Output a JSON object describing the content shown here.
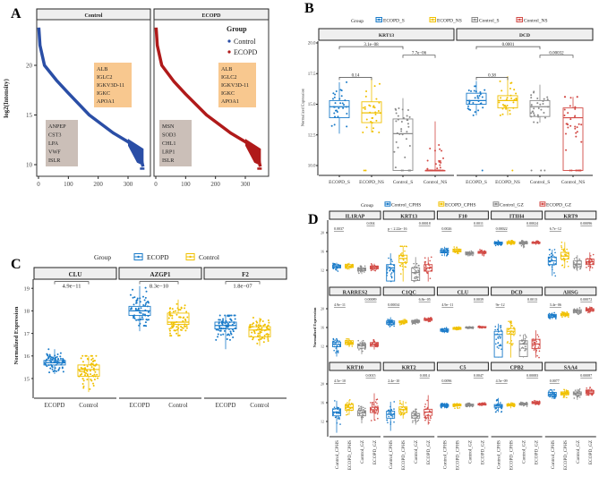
{
  "colors": {
    "a_control": "#2a4ea6",
    "a_ecopd": "#b01a1a",
    "blue": "#1a7bc9",
    "yellow": "#f0c000",
    "grey": "#8a8a8a",
    "red": "#d24a45",
    "label_orange": "#f8c88f",
    "label_grey": "#cbbfb8"
  },
  "chart_data": [
    {
      "panel": "A",
      "type": "scatter",
      "ylabel": "log2(Intensity)",
      "yticks": [
        10,
        15,
        20
      ],
      "xticks": [
        0,
        100,
        200,
        300
      ],
      "legend": {
        "title": "Group",
        "entries": [
          "Control",
          "ECOPD"
        ],
        "placement": "top-right"
      },
      "facets": [
        {
          "title": "Control",
          "series": "Control",
          "curve": [
            [
              1,
              23.8
            ],
            [
              5,
              22
            ],
            [
              20,
              20
            ],
            [
              60,
              18.5
            ],
            [
              100,
              17.2
            ],
            [
              170,
              15
            ],
            [
              250,
              13.2
            ],
            [
              300,
              12.3
            ],
            [
              330,
              11.5
            ],
            [
              345,
              10.5
            ],
            [
              350,
              9.8
            ]
          ],
          "high_genes": [
            "ALB",
            "IGLC2",
            "IGKV3D-11",
            "IGKC",
            "APOA1"
          ],
          "low_genes": [
            "ANPEP",
            "CST3",
            "LPA",
            "VWF",
            "ISLR"
          ]
        },
        {
          "title": "ECOPD",
          "series": "ECOPD",
          "curve": [
            [
              1,
              23.8
            ],
            [
              5,
              22
            ],
            [
              20,
              20
            ],
            [
              60,
              18.4
            ],
            [
              100,
              17.1
            ],
            [
              170,
              15
            ],
            [
              250,
              13.2
            ],
            [
              300,
              12.3
            ],
            [
              330,
              11.5
            ],
            [
              345,
              10.5
            ],
            [
              350,
              9.8
            ]
          ],
          "high_genes": [
            "ALB",
            "IGLC2",
            "IGKV3D-11",
            "IGKC",
            "APOA1"
          ],
          "low_genes": [
            "MSN",
            "SOD3",
            "CHL1",
            "LRP1",
            "ISLR"
          ]
        }
      ]
    },
    {
      "panel": "B",
      "type": "box",
      "ylabel": "Normalized Expression",
      "yticks": [
        "10.0",
        "12.5",
        "15.0",
        "17.5",
        "20.0"
      ],
      "legend": {
        "title": "Group",
        "entries": [
          "ECOPD_S",
          "ECOPD_NS",
          "Control_S",
          "Control_NS"
        ],
        "placement": "top"
      },
      "categories": [
        "ECOPD_S",
        "ECOPD_NS",
        "Control_S",
        "Control_NS"
      ],
      "facets": [
        {
          "title": "KRT13",
          "boxes": [
            [
              12.6,
              13.9,
              14.8,
              15.3,
              16.8
            ],
            [
              12.7,
              13.5,
              14.3,
              15.2,
              17.1
            ],
            [
              9.6,
              9.6,
              12.6,
              13.8,
              15.5
            ],
            [
              9.6,
              9.6,
              9.6,
              9.6,
              13.6
            ]
          ],
          "floor": [
            0,
            2,
            5,
            14
          ],
          "pvalues": [
            {
              "pair": [
                1,
                3
              ],
              "p": "3.1e−08",
              "y": 19.7
            },
            {
              "pair": [
                3,
                4
              ],
              "p": "7.7e−06",
              "y": 19.0
            },
            {
              "pair": [
                1,
                2
              ],
              "p": "0.14",
              "y": 17.2
            }
          ]
        },
        {
          "title": "DCD",
          "boxes": [
            [
              14.1,
              15.0,
              15.3,
              15.9,
              16.9
            ],
            [
              14.1,
              14.7,
              15.3,
              15.7,
              17.3
            ],
            [
              13.5,
              14.0,
              14.8,
              15.3,
              16.6
            ],
            [
              9.6,
              9.6,
              13.9,
              14.7,
              15.6
            ]
          ],
          "floor": [
            1,
            1,
            3,
            8
          ],
          "pvalues": [
            {
              "pair": [
                1,
                3
              ],
              "p": "0.0001",
              "y": 19.7
            },
            {
              "pair": [
                3,
                4
              ],
              "p": "0.00032",
              "y": 19.0
            },
            {
              "pair": [
                1,
                2
              ],
              "p": "0.38",
              "y": 17.2
            }
          ]
        }
      ]
    },
    {
      "panel": "C",
      "type": "box",
      "ylabel": "Normalized Expression",
      "yticks": [
        15,
        16,
        17,
        18,
        19
      ],
      "legend": {
        "title": "Group",
        "entries": [
          "ECOPD",
          "Control"
        ],
        "placement": "top"
      },
      "categories": [
        "ECOPD",
        "Control"
      ],
      "facets": [
        {
          "title": "CLU",
          "boxes": [
            [
              15.2,
              15.6,
              15.7,
              15.8,
              16.3
            ],
            [
              14.4,
              15.1,
              15.4,
              15.6,
              16.0
            ]
          ],
          "p": "4.9e−11"
        },
        {
          "title": "AZGP1",
          "boxes": [
            [
              17.1,
              17.8,
              18.0,
              18.2,
              19.1
            ],
            [
              16.9,
              17.4,
              17.5,
              17.9,
              18.5
            ]
          ],
          "p": "8.3e−10"
        },
        {
          "title": "F2",
          "boxes": [
            [
              16.3,
              17.2,
              17.35,
              17.5,
              17.8
            ],
            [
              16.45,
              16.85,
              17.15,
              17.3,
              17.7
            ]
          ],
          "p": "1.8e−07"
        }
      ]
    },
    {
      "panel": "D",
      "type": "box",
      "ylabel": "Normalized Expression",
      "yticks": [
        12,
        16,
        20
      ],
      "legend": {
        "title": "Group",
        "entries": [
          "Control_CPHS",
          "ECOPD_CPHS",
          "Control_GZ",
          "ECOPD_GZ"
        ],
        "placement": "top"
      },
      "categories": [
        "Control_CPHS",
        "ECOPD_CPHS",
        "Control_GZ",
        "ECOPD_GZ"
      ],
      "facets": [
        {
          "title": "IL1RAP",
          "p": [
            "0.0037",
            "0.004"
          ],
          "boxes": [
            [
              11.8,
              12.5,
              12.8,
              13.1,
              13.6
            ],
            [
              12.1,
              12.6,
              12.9,
              13.2,
              13.6
            ],
            [
              11.2,
              11.9,
              12.2,
              12.5,
              12.9
            ],
            [
              11.8,
              12.3,
              12.6,
              12.9,
              13.4
            ]
          ]
        },
        {
          "title": "KRT13",
          "p": [
            "p < 2.22e−16",
            "0.00018"
          ],
          "boxes": [
            [
              9.6,
              9.7,
              12.5,
              13.2,
              15.6
            ],
            [
              9.6,
              13.6,
              14.5,
              15.2,
              17.1
            ],
            [
              9.6,
              9.8,
              11.5,
              12.5,
              14.8
            ],
            [
              9.6,
              11.8,
              12.5,
              13.2,
              14.8
            ]
          ]
        },
        {
          "title": "F10",
          "p": [
            "0.0026",
            "0.0011"
          ],
          "boxes": [
            [
              15.0,
              15.7,
              16.0,
              16.3,
              17.0
            ],
            [
              15.4,
              15.9,
              16.2,
              16.5,
              17.0
            ],
            [
              15.0,
              15.4,
              15.6,
              15.8,
              16.1
            ],
            [
              15.1,
              15.6,
              15.8,
              16.0,
              16.4
            ]
          ]
        },
        {
          "title": "ITIH4",
          "p": [
            "0.00022",
            "0.00024"
          ],
          "boxes": [
            [
              17.2,
              17.6,
              17.8,
              18.0,
              18.4
            ],
            [
              17.3,
              17.7,
              17.9,
              18.1,
              18.4
            ],
            [
              16.7,
              17.6,
              17.8,
              18.0,
              18.3
            ],
            [
              17.4,
              17.7,
              17.9,
              18.0,
              18.2
            ]
          ]
        },
        {
          "title": "KRT9",
          "p": [
            "6.7e−12",
            "0.00096"
          ],
          "boxes": [
            [
              10.8,
              13.2,
              14.0,
              14.8,
              16.4
            ],
            [
              12.6,
              14.4,
              15.0,
              15.8,
              18.0
            ],
            [
              11.8,
              12.7,
              13.3,
              14.0,
              15.2
            ],
            [
              11.8,
              13.2,
              13.8,
              14.4,
              15.8
            ]
          ]
        },
        {
          "title": "RARRES2",
          "p": [
            "4.9e−11",
            "0.00089"
          ],
          "boxes": [
            [
              9.8,
              11.9,
              12.4,
              12.9,
              13.6
            ],
            [
              11.8,
              12.4,
              12.8,
              13.2,
              13.7
            ],
            [
              10.3,
              11.6,
              12.1,
              12.5,
              13.2
            ],
            [
              11.3,
              12.0,
              12.4,
              12.8,
              13.4
            ]
          ]
        },
        {
          "title": "C1QC",
          "p": [
            "0.00034",
            "6.8e−05"
          ],
          "boxes": [
            [
              16.2,
              16.7,
              17.0,
              17.4,
              18.2
            ],
            [
              16.6,
              17.0,
              17.2,
              17.4,
              17.8
            ],
            [
              16.6,
              17.1,
              17.3,
              17.5,
              17.8
            ],
            [
              17.1,
              17.5,
              17.7,
              17.9,
              18.2
            ]
          ]
        },
        {
          "title": "CLU",
          "p": [
            "4.9e−11",
            "0.0039"
          ],
          "boxes": [
            [
              14.8,
              15.2,
              15.4,
              15.7,
              16.0
            ],
            [
              15.4,
              15.6,
              15.8,
              16.0,
              16.2
            ],
            [
              15.7,
              15.9,
              16.0,
              16.1,
              16.3
            ],
            [
              15.8,
              16.0,
              16.1,
              16.2,
              16.3
            ]
          ]
        },
        {
          "title": "DCD",
          "p": [
            "9e−12",
            "0.0013"
          ],
          "boxes": [
            [
              9.6,
              9.7,
              14.5,
              15.2,
              16.8
            ],
            [
              9.6,
              14.6,
              15.2,
              15.8,
              17.3
            ],
            [
              9.6,
              9.8,
              12.5,
              13.2,
              14.5
            ],
            [
              9.6,
              11.5,
              12.5,
              13.5,
              15.4
            ]
          ]
        },
        {
          "title": "AHSG",
          "p": [
            "3.4e−06",
            "0.00072"
          ],
          "boxes": [
            [
              17.8,
              18.2,
              18.5,
              18.8,
              19.2
            ],
            [
              18.2,
              18.5,
              18.8,
              19.0,
              19.3
            ],
            [
              18.8,
              19.2,
              19.5,
              19.8,
              20.2
            ],
            [
              19.0,
              19.5,
              19.8,
              20.0,
              20.5
            ]
          ]
        },
        {
          "title": "KRT10",
          "p": [
            "4.5e−10",
            "0.0015"
          ],
          "boxes": [
            [
              9.6,
              13.2,
              14.0,
              14.7,
              16.4
            ],
            [
              13.4,
              14.4,
              15.0,
              15.6,
              16.6
            ],
            [
              11.6,
              13.2,
              13.8,
              14.3,
              15.3
            ],
            [
              12.2,
              13.9,
              14.5,
              15.0,
              18.0
            ]
          ]
        },
        {
          "title": "KRT2",
          "p": [
            "2.4e−10",
            "0.0014"
          ],
          "boxes": [
            [
              10.0,
              12.7,
              13.5,
              14.2,
              16.2
            ],
            [
              12.6,
              13.9,
              14.5,
              15.1,
              16.4
            ],
            [
              11.3,
              12.7,
              13.2,
              13.7,
              14.6
            ],
            [
              11.3,
              13.3,
              14.0,
              14.6,
              17.6
            ]
          ]
        },
        {
          "title": "C5",
          "p": [
            "0.0096",
            "0.0047"
          ],
          "boxes": [
            [
              14.8,
              15.2,
              15.4,
              15.6,
              15.9
            ],
            [
              14.8,
              15.3,
              15.5,
              15.7,
              16.0
            ],
            [
              15.0,
              15.3,
              15.5,
              15.7,
              15.9
            ],
            [
              15.3,
              15.5,
              15.7,
              15.8,
              16.0
            ]
          ]
        },
        {
          "title": "CPB2",
          "p": [
            "4.5e−09",
            "0.00083"
          ],
          "boxes": [
            [
              14.0,
              15.0,
              15.3,
              15.6,
              17.0
            ],
            [
              14.8,
              15.3,
              15.5,
              15.7,
              16.0
            ],
            [
              15.2,
              15.5,
              15.7,
              15.9,
              16.1
            ],
            [
              15.5,
              15.8,
              16.0,
              16.2,
              16.5
            ]
          ]
        },
        {
          "title": "SAA4",
          "p": [
            "0.0077",
            "0.00087"
          ],
          "boxes": [
            [
              16.8,
              17.4,
              17.8,
              18.2,
              18.8
            ],
            [
              17.0,
              17.7,
              18.0,
              18.3,
              18.8
            ],
            [
              16.6,
              17.7,
              18.0,
              18.3,
              18.9
            ],
            [
              17.6,
              18.0,
              18.3,
              18.6,
              19.4
            ]
          ]
        }
      ]
    }
  ]
}
